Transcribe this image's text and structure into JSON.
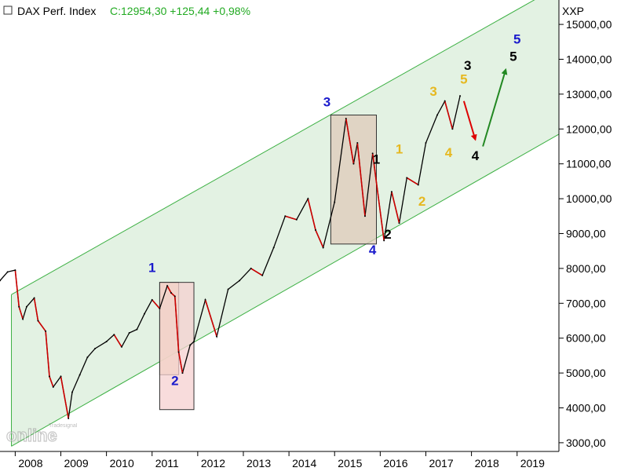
{
  "header": {
    "instrument": "DAX Perf. Index",
    "quote": "C:12954,30 +125,44 +0,98%",
    "y_axis_label": "XXP",
    "watermark_brand": "Tradesignal",
    "watermark_text": "online"
  },
  "colors": {
    "up_line": "#22aa22",
    "down_candle": "#cc0000",
    "channel_fill": "#e3f2e3",
    "channel_line": "#3cb043",
    "quote_green": "#22aa22",
    "wave_blue": "#1a1acc",
    "wave_yellow": "#e6b820",
    "wave_black": "#000000",
    "arrow_red": "#dd0000",
    "arrow_green": "#228822"
  },
  "chart_data": {
    "type": "line",
    "title": "DAX Perf. Index",
    "x_axis": {
      "type": "date",
      "ticks": [
        "2008",
        "2009",
        "2010",
        "2011",
        "2012",
        "2013",
        "2014",
        "2015",
        "2016",
        "2017",
        "2018",
        "2019"
      ],
      "range": [
        "2007-09",
        "2019-12"
      ]
    },
    "y_axis": {
      "label": "XXP",
      "range": [
        2750,
        15700
      ],
      "ticks": [
        "3000,00",
        "4000,00",
        "5000,00",
        "6000,00",
        "7000,00",
        "8000,00",
        "9000,00",
        "10000,00",
        "11000,00",
        "12000,00",
        "13000,00",
        "14000,00",
        "15000,00"
      ],
      "position": "right",
      "grid": false
    },
    "series": [
      {
        "name": "",
        "points": [
          [
            "2007-09",
            7650
          ],
          [
            "2007-11",
            7900
          ],
          [
            "2008-01",
            7950
          ],
          [
            "2008-02",
            6900
          ],
          [
            "2008-03",
            6550
          ],
          [
            "2008-04",
            6900
          ],
          [
            "2008-06",
            7150
          ],
          [
            "2008-07",
            6500
          ],
          [
            "2008-09",
            6200
          ],
          [
            "2008-10",
            4900
          ],
          [
            "2008-11",
            4600
          ],
          [
            "2009-01",
            4900
          ],
          [
            "2009-03",
            3700
          ],
          [
            "2009-04",
            4450
          ],
          [
            "2009-06",
            4950
          ],
          [
            "2009-08",
            5450
          ],
          [
            "2009-10",
            5700
          ],
          [
            "2010-01",
            5900
          ],
          [
            "2010-03",
            6100
          ],
          [
            "2010-05",
            5750
          ],
          [
            "2010-07",
            6150
          ],
          [
            "2010-09",
            6250
          ],
          [
            "2010-11",
            6700
          ],
          [
            "2011-01",
            7100
          ],
          [
            "2011-03",
            6850
          ],
          [
            "2011-05",
            7500
          ],
          [
            "2011-06",
            7300
          ],
          [
            "2011-07",
            7200
          ],
          [
            "2011-08",
            5600
          ],
          [
            "2011-09",
            5000
          ],
          [
            "2011-11",
            5800
          ],
          [
            "2011-12",
            5900
          ],
          [
            "2012-03",
            7100
          ],
          [
            "2012-06",
            6050
          ],
          [
            "2012-09",
            7400
          ],
          [
            "2012-12",
            7650
          ],
          [
            "2013-03",
            8000
          ],
          [
            "2013-06",
            7800
          ],
          [
            "2013-09",
            8600
          ],
          [
            "2013-12",
            9500
          ],
          [
            "2014-03",
            9400
          ],
          [
            "2014-06",
            10000
          ],
          [
            "2014-08",
            9100
          ],
          [
            "2014-10",
            8600
          ],
          [
            "2015-01",
            9900
          ],
          [
            "2015-04",
            12300
          ],
          [
            "2015-06",
            11000
          ],
          [
            "2015-07",
            11600
          ],
          [
            "2015-09",
            9500
          ],
          [
            "2015-11",
            11300
          ],
          [
            "2016-02",
            8800
          ],
          [
            "2016-04",
            10200
          ],
          [
            "2016-06",
            9300
          ],
          [
            "2016-08",
            10600
          ],
          [
            "2016-11",
            10400
          ],
          [
            "2017-01",
            11600
          ],
          [
            "2017-04",
            12400
          ],
          [
            "2017-06",
            12800
          ],
          [
            "2017-08",
            12000
          ],
          [
            "2017-10",
            12950
          ]
        ]
      }
    ],
    "channel": {
      "upper": [
        [
          "2007-12",
          7250
        ],
        [
          "2019-12",
          16100
        ]
      ],
      "lower": [
        [
          "2007-12",
          2900
        ],
        [
          "2019-12",
          11850
        ]
      ]
    },
    "boxes": [
      {
        "x0": "2011-03",
        "x1": "2011-08",
        "y0": 4950,
        "y1": 7600,
        "fill": "#e8d4a8"
      },
      {
        "x0": "2011-03",
        "x1": "2011-12",
        "y0": 3950,
        "y1": 7600,
        "fill": "#f5d0d0"
      },
      {
        "x0": "2014-12",
        "x1": "2015-12",
        "y0": 8700,
        "y1": 12400,
        "fill": "#dfc9b9"
      }
    ],
    "wave_labels": [
      {
        "text": "1",
        "x": "2011-01",
        "y": 7900,
        "color": "#1a1acc"
      },
      {
        "text": "2",
        "x": "2011-07",
        "y": 4650,
        "color": "#1a1acc"
      },
      {
        "text": "3",
        "x": "2014-11",
        "y": 12650,
        "color": "#1a1acc"
      },
      {
        "text": "4",
        "x": "2015-11",
        "y": 8400,
        "color": "#1a1acc"
      },
      {
        "text": "5",
        "x": "2019-01",
        "y": 14450,
        "color": "#1a1acc"
      },
      {
        "text": "1",
        "x": "2016-06",
        "y": 11300,
        "color": "#e6b820"
      },
      {
        "text": "2",
        "x": "2016-12",
        "y": 9800,
        "color": "#e6b820"
      },
      {
        "text": "3",
        "x": "2017-03",
        "y": 12950,
        "color": "#e6b820"
      },
      {
        "text": "4",
        "x": "2017-07",
        "y": 11200,
        "color": "#e6b820"
      },
      {
        "text": "5",
        "x": "2017-11",
        "y": 13300,
        "color": "#e6b820"
      },
      {
        "text": "1",
        "x": "2015-12",
        "y": 11000,
        "color": "#000000"
      },
      {
        "text": "2",
        "x": "2016-03",
        "y": 8850,
        "color": "#000000"
      },
      {
        "text": "3",
        "x": "2017-12",
        "y": 13700,
        "color": "#000000"
      },
      {
        "text": "4",
        "x": "2018-02",
        "y": 11100,
        "color": "#000000"
      },
      {
        "text": "5",
        "x": "2018-12",
        "y": 13950,
        "color": "#000000"
      }
    ],
    "arrows": [
      {
        "from": [
          "2017-11",
          12800
        ],
        "to": [
          "2018-02",
          11700
        ],
        "color": "#dd0000"
      },
      {
        "from": [
          "2018-04",
          11500
        ],
        "to": [
          "2018-10",
          13700
        ],
        "color": "#228822"
      }
    ]
  }
}
